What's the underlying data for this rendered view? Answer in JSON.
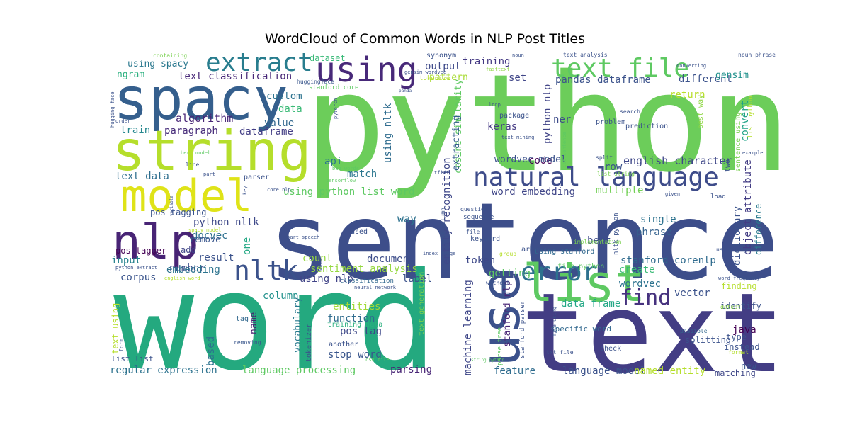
{
  "chart_data": {
    "type": "wordcloud",
    "title": "WordCloud of Common Words in NLP Post Titles",
    "words": [
      {
        "text": "python",
        "weight": 100,
        "color": "#6ccd5a"
      },
      {
        "text": "word",
        "weight": 96,
        "color": "#24a97f"
      },
      {
        "text": "sentence",
        "weight": 85,
        "color": "#3d4e8a"
      },
      {
        "text": "text",
        "weight": 82,
        "color": "#433d84"
      },
      {
        "text": "spacy",
        "weight": 60,
        "color": "#355f8d"
      },
      {
        "text": "string",
        "weight": 55,
        "color": "#b5de2b"
      },
      {
        "text": "model",
        "weight": 45,
        "color": "#dfe318"
      },
      {
        "text": "use",
        "weight": 50,
        "color": "#3b518b"
      },
      {
        "text": "nlp",
        "weight": 44,
        "color": "#482475"
      },
      {
        "text": "list",
        "weight": 44,
        "color": "#5ec962"
      },
      {
        "text": "using",
        "weight": 38,
        "color": "#482979"
      },
      {
        "text": "text file",
        "weight": 34,
        "color": "#5ec962"
      },
      {
        "text": "natural language",
        "weight": 33,
        "color": "#3e4c8a"
      },
      {
        "text": "extract",
        "weight": 30,
        "color": "#287d8e"
      },
      {
        "text": "nltk",
        "weight": 30,
        "color": "#3b528b"
      },
      {
        "text": "error",
        "weight": 30,
        "color": "#2d718e"
      },
      {
        "text": "find",
        "weight": 24,
        "color": "#46327e"
      },
      {
        "text": "english character",
        "weight": 18,
        "color": "#3f4788"
      },
      {
        "text": "different",
        "weight": 16,
        "color": "#3b528b"
      },
      {
        "text": "text classification",
        "weight": 14,
        "color": "#482878"
      },
      {
        "text": "using spacy",
        "weight": 13,
        "color": "#2a788e"
      },
      {
        "text": "ngram",
        "weight": 13,
        "color": "#2ab07f"
      },
      {
        "text": "training",
        "weight": 13,
        "color": "#443983"
      },
      {
        "text": "dataset",
        "weight": 12,
        "color": "#38b977"
      },
      {
        "text": "output",
        "weight": 13,
        "color": "#3e4989"
      },
      {
        "text": "pattern",
        "weight": 12,
        "color": "#a8db34"
      },
      {
        "text": "set",
        "weight": 12,
        "color": "#404688"
      },
      {
        "text": "pandas dataframe",
        "weight": 13,
        "color": "#3b528b"
      },
      {
        "text": "return",
        "weight": 12,
        "color": "#b8de29"
      },
      {
        "text": "gensim",
        "weight": 11,
        "color": "#21918c"
      },
      {
        "text": "custom",
        "weight": 12,
        "color": "#2c728e"
      },
      {
        "text": "data",
        "weight": 12,
        "color": "#3aba76"
      },
      {
        "text": "algorithm",
        "weight": 13,
        "color": "#482677"
      },
      {
        "text": "value",
        "weight": 12,
        "color": "#31688e"
      },
      {
        "text": "train",
        "weight": 12,
        "color": "#24878e"
      },
      {
        "text": "paragraph",
        "weight": 12,
        "color": "#472c7a"
      },
      {
        "text": "dataframe",
        "weight": 12,
        "color": "#433e85"
      },
      {
        "text": "text data",
        "weight": 12,
        "color": "#2e6e8e"
      },
      {
        "text": "api",
        "weight": 12,
        "color": "#2b758e"
      },
      {
        "text": "match",
        "weight": 12,
        "color": "#2a768e"
      },
      {
        "text": "cosine similarity",
        "weight": 12,
        "color": "#5ec962"
      },
      {
        "text": "extracting",
        "weight": 12,
        "color": "#355f8d"
      },
      {
        "text": "keras",
        "weight": 12,
        "color": "#443983"
      },
      {
        "text": "ner",
        "weight": 12,
        "color": "#3e4c8a"
      },
      {
        "text": "code",
        "weight": 12,
        "color": "#440154"
      },
      {
        "text": "row",
        "weight": 12,
        "color": "#3b528b"
      },
      {
        "text": "wordvec model",
        "weight": 11,
        "color": "#3b528b"
      },
      {
        "text": "word embedding",
        "weight": 12,
        "color": "#404688"
      },
      {
        "text": "multiple",
        "weight": 12,
        "color": "#73d056"
      },
      {
        "text": "using python list word",
        "weight": 12,
        "color": "#5ec962"
      },
      {
        "text": "python nlp",
        "weight": 12,
        "color": "#414487"
      },
      {
        "text": "using nltk",
        "weight": 12,
        "color": "#2f6c8e"
      },
      {
        "text": "entity recognition",
        "weight": 12,
        "color": "#3f4889"
      },
      {
        "text": "convert",
        "weight": 12,
        "color": "#20a386"
      },
      {
        "text": "pos tagging",
        "weight": 11,
        "color": "#3a548c"
      },
      {
        "text": "python nltk",
        "weight": 12,
        "color": "#3e4989"
      },
      {
        "text": "docvec",
        "weight": 12,
        "color": "#2d708e"
      },
      {
        "text": "remove",
        "weight": 10,
        "color": "#39568c"
      },
      {
        "text": "result",
        "weight": 12,
        "color": "#3b528b"
      },
      {
        "text": "pos tagger",
        "weight": 10,
        "color": "#440154"
      },
      {
        "text": "add",
        "weight": 10,
        "color": "#404688"
      },
      {
        "text": "input",
        "weight": 12,
        "color": "#26828e"
      },
      {
        "text": "number",
        "weight": 12,
        "color": "#3d4d8a"
      },
      {
        "text": "embedding",
        "weight": 12,
        "color": "#2c738e"
      },
      {
        "text": "column",
        "weight": 12,
        "color": "#21918c"
      },
      {
        "text": "one",
        "weight": 12,
        "color": "#22a884"
      },
      {
        "text": "corpus",
        "weight": 12,
        "color": "#3a548c"
      },
      {
        "text": "way",
        "weight": 13,
        "color": "#2d718e"
      },
      {
        "text": "count",
        "weight": 12,
        "color": "#95d840"
      },
      {
        "text": "document",
        "weight": 13,
        "color": "#3d4d8a"
      },
      {
        "text": "sentiment analysis",
        "weight": 12,
        "color": "#95d840"
      },
      {
        "text": "using nlp",
        "weight": 12,
        "color": "#414487"
      },
      {
        "text": "label",
        "weight": 12,
        "color": "#3b528b"
      },
      {
        "text": "token",
        "weight": 12,
        "color": "#3e4989"
      },
      {
        "text": "getting",
        "weight": 12,
        "color": "#5ec962"
      },
      {
        "text": "single",
        "weight": 12,
        "color": "#2c728e"
      },
      {
        "text": "phrase",
        "weight": 12,
        "color": "#34618d"
      },
      {
        "text": "bert",
        "weight": 12,
        "color": "#3e4c8a"
      },
      {
        "text": "stanford corenlp",
        "weight": 12,
        "color": "#2f6b8e"
      },
      {
        "text": "create",
        "weight": 12,
        "color": "#3aba76"
      },
      {
        "text": "wordvec",
        "weight": 12,
        "color": "#2c728e"
      },
      {
        "text": "vector",
        "weight": 12,
        "color": "#3b528b"
      },
      {
        "text": "dictionary",
        "weight": 12,
        "color": "#3b528b"
      },
      {
        "text": "object attribute",
        "weight": 12,
        "color": "#433d84"
      },
      {
        "text": "difference",
        "weight": 10,
        "color": "#297b8e"
      },
      {
        "text": "data frame",
        "weight": 12,
        "color": "#22a785"
      },
      {
        "text": "stanford nlp",
        "weight": 12,
        "color": "#482475"
      },
      {
        "text": "entities",
        "weight": 12,
        "color": "#a2da37"
      },
      {
        "text": "function",
        "weight": 12,
        "color": "#2f6c8e"
      },
      {
        "text": "pos tag",
        "weight": 12,
        "color": "#3e4989"
      },
      {
        "text": "stop word",
        "weight": 12,
        "color": "#39568c"
      },
      {
        "text": "vocabulary",
        "weight": 12,
        "color": "#297a8e"
      },
      {
        "text": "name",
        "weight": 12,
        "color": "#481f70"
      },
      {
        "text": "based",
        "weight": 12,
        "color": "#2c728e"
      },
      {
        "text": "regular expression",
        "weight": 12,
        "color": "#2c728e"
      },
      {
        "text": "language processing",
        "weight": 12,
        "color": "#5ec962"
      },
      {
        "text": "parsing",
        "weight": 12,
        "color": "#482576"
      },
      {
        "text": "machine learning",
        "weight": 12,
        "color": "#3f4788"
      },
      {
        "text": "feature",
        "weight": 12,
        "color": "#2f6c8e"
      },
      {
        "text": "language model",
        "weight": 12,
        "color": "#3b528b"
      },
      {
        "text": "named entity",
        "weight": 12,
        "color": "#b5de2b"
      },
      {
        "text": "matching",
        "weight": 10,
        "color": "#3f4788"
      },
      {
        "text": "new",
        "weight": 10,
        "color": "#39568c"
      },
      {
        "text": "java",
        "weight": 12,
        "color": "#440154"
      },
      {
        "text": "identify",
        "weight": 10,
        "color": "#3b528b"
      },
      {
        "text": "text using",
        "weight": 11,
        "color": "#b5de2b"
      },
      {
        "text": "tag",
        "weight": 10,
        "color": "#31688e"
      },
      {
        "text": "classification",
        "weight": 9,
        "color": "#31688e"
      },
      {
        "text": "tokenizer",
        "weight": 8,
        "color": "#3b528b"
      },
      {
        "text": "training data",
        "weight": 9,
        "color": "#2ab07f"
      },
      {
        "text": "another",
        "weight": 9,
        "color": "#3b528b"
      },
      {
        "text": "removing",
        "weight": 9,
        "color": "#39568c"
      },
      {
        "text": "list list",
        "weight": 8,
        "color": "#3b528b"
      },
      {
        "text": "form",
        "weight": 9,
        "color": "#3b528b"
      },
      {
        "text": "text generation",
        "weight": 7,
        "color": "#7ad151"
      },
      {
        "text": "parse tree",
        "weight": 8,
        "color": "#5ec962"
      },
      {
        "text": "stanford parser",
        "weight": 8,
        "color": "#3b528b"
      },
      {
        "text": "specific word",
        "weight": 7,
        "color": "#31688e"
      },
      {
        "text": "check",
        "weight": 9,
        "color": "#3b528b"
      },
      {
        "text": "splitting",
        "weight": 8,
        "color": "#3b528b"
      },
      {
        "text": "possible",
        "weight": 9,
        "color": "#31688e"
      },
      {
        "text": "type",
        "weight": 10,
        "color": "#3b528b"
      },
      {
        "text": "instead",
        "weight": 8,
        "color": "#3b528b"
      },
      {
        "text": "finding",
        "weight": 10,
        "color": "#b5de2b"
      },
      {
        "text": "detect",
        "weight": 9,
        "color": "#8fd744"
      },
      {
        "text": "format",
        "weight": 9,
        "color": "#b5de2b"
      },
      {
        "text": "txt file",
        "weight": 7,
        "color": "#3b528b"
      },
      {
        "text": "file using",
        "weight": 7,
        "color": "#3b528b"
      },
      {
        "text": "containing",
        "weight": 7,
        "color": "#7ad151"
      },
      {
        "text": "synonym",
        "weight": 6,
        "color": "#3b528b"
      },
      {
        "text": "stanford core",
        "weight": 7,
        "color": "#5ec962"
      },
      {
        "text": "huggingface",
        "weight": 10,
        "color": "#39568c"
      },
      {
        "text": "gensim wordvec",
        "weight": 9,
        "color": "#3b528b"
      },
      {
        "text": "panda",
        "weight": 8,
        "color": "#3b528b"
      },
      {
        "text": "noun",
        "weight": 6,
        "color": "#3b528b"
      },
      {
        "text": "fasttext",
        "weight": 6,
        "color": "#8fd744"
      },
      {
        "text": "text analysis",
        "weight": 7,
        "color": "#3b528b"
      },
      {
        "text": "noun phrase",
        "weight": 6,
        "color": "#3b528b"
      },
      {
        "text": "converting",
        "weight": 7,
        "color": "#3b528b"
      },
      {
        "text": "package",
        "weight": 7,
        "color": "#3b528b"
      },
      {
        "text": "text mining",
        "weight": 6,
        "color": "#3b528b"
      },
      {
        "text": "loop",
        "weight": 9,
        "color": "#3b528b"
      },
      {
        "text": "search",
        "weight": 6,
        "color": "#3b528b"
      },
      {
        "text": "prediction",
        "weight": 6,
        "color": "#3b528b"
      },
      {
        "text": "problem",
        "weight": 7,
        "color": "#3b528b"
      },
      {
        "text": "split",
        "weight": 9,
        "color": "#3b528b"
      },
      {
        "text": "list string",
        "weight": 9,
        "color": "#7ad151"
      },
      {
        "text": "tfidf",
        "weight": 7,
        "color": "#3b528b"
      },
      {
        "text": "example",
        "weight": 7,
        "color": "#3b528b"
      },
      {
        "text": "given",
        "weight": 7,
        "color": "#3b528b"
      },
      {
        "text": "load",
        "weight": 7,
        "color": "#3b528b"
      },
      {
        "text": "best way",
        "weight": 6,
        "color": "#8fd744"
      },
      {
        "text": "two",
        "weight": 7,
        "color": "#3b528b"
      },
      {
        "text": "sentence using",
        "weight": 10,
        "color": "#7ad151"
      },
      {
        "text": "list python",
        "weight": 10,
        "color": "#b5de2b"
      },
      {
        "text": "nltk python",
        "weight": 10,
        "color": "#3b528b"
      },
      {
        "text": "using stanford",
        "weight": 9,
        "color": "#31688e"
      },
      {
        "text": "implementation",
        "weight": 8,
        "color": "#7ad151"
      },
      {
        "text": "array",
        "weight": 10,
        "color": "#3b528b"
      },
      {
        "text": "group",
        "weight": 7,
        "color": "#b5de2b"
      },
      {
        "text": "file python",
        "weight": 10,
        "color": "#5ec962"
      },
      {
        "text": "file",
        "weight": 7,
        "color": "#3b528b"
      },
      {
        "text": "sequence",
        "weight": 8,
        "color": "#3b528b"
      },
      {
        "text": "question",
        "weight": 7,
        "color": "#3b528b"
      },
      {
        "text": "keyword",
        "weight": 8,
        "color": "#3b528b"
      },
      {
        "text": "text column",
        "weight": 6,
        "color": "#3b528b"
      },
      {
        "text": "used",
        "weight": 9,
        "color": "#3b528b"
      },
      {
        "text": "work",
        "weight": 8,
        "color": "#3b528b"
      },
      {
        "text": "without",
        "weight": 9,
        "color": "#3b528b"
      },
      {
        "text": "word frequency",
        "weight": 7,
        "color": "#3b528b"
      },
      {
        "text": "using regex",
        "weight": 7,
        "color": "#3b528b"
      },
      {
        "text": "part speech",
        "weight": 6,
        "color": "#3b528b"
      },
      {
        "text": "spacy model",
        "weight": 6,
        "color": "#b5de2b"
      },
      {
        "text": "index range",
        "weight": 6,
        "color": "#3b528b"
      },
      {
        "text": "neural network",
        "weight": 7,
        "color": "#3b528b"
      },
      {
        "text": "parser",
        "weight": 6,
        "color": "#3b528b"
      },
      {
        "text": "core nlp",
        "weight": 6,
        "color": "#3b528b"
      },
      {
        "text": "key",
        "weight": 9,
        "color": "#3b528b"
      },
      {
        "text": "part",
        "weight": 6,
        "color": "#3b528b"
      },
      {
        "text": "line",
        "weight": 6,
        "color": "#3b528b"
      },
      {
        "text": "bert model",
        "weight": 6,
        "color": "#5ec962"
      },
      {
        "text": "pytorch",
        "weight": 7,
        "color": "#3b528b"
      },
      {
        "text": "bag words",
        "weight": 6,
        "color": "#5ec962"
      },
      {
        "text": "tensorflow",
        "weight": 6,
        "color": "#5ec962"
      },
      {
        "text": "list sentence",
        "weight": 6,
        "color": "#5ec962"
      },
      {
        "text": "order",
        "weight": 6,
        "color": "#3b528b"
      },
      {
        "text": "hugging face",
        "weight": 6,
        "color": "#3b528b"
      },
      {
        "text": "variable",
        "weight": 6,
        "color": "#3b528b"
      },
      {
        "text": "python extract",
        "weight": 6,
        "color": "#3b528b"
      },
      {
        "text": "english word",
        "weight": 6,
        "color": "#b5de2b"
      },
      {
        "text": "csv file",
        "weight": 6,
        "color": "#5ec962"
      },
      {
        "text": "string python",
        "weight": 6,
        "color": "#5ec962"
      },
      {
        "text": "tokenize",
        "weight": 6,
        "color": "#b5de2b"
      },
      {
        "text": "mean",
        "weight": 6,
        "color": "#3b528b"
      },
      {
        "text": "v",
        "weight": 8,
        "color": "#b5de2b"
      }
    ]
  }
}
